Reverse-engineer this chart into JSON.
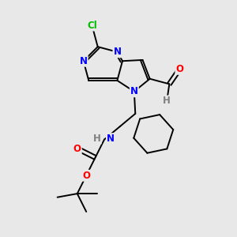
{
  "background_color": "#e8e8e8",
  "figsize": [
    3.0,
    3.0
  ],
  "dpi": 100,
  "atom_colors": {
    "N": "#0000ff",
    "O": "#ff0000",
    "Cl": "#00bb00",
    "C": "#000000",
    "H": "#808080"
  },
  "bond_color": "#000000",
  "bond_width": 1.4
}
